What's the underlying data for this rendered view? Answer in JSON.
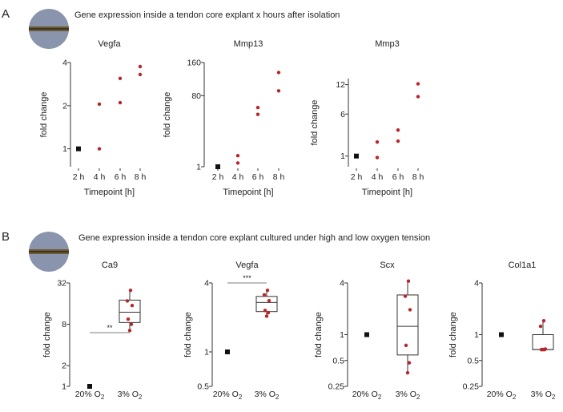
{
  "panels": [
    {
      "label": "A",
      "caption": "Gene expression inside a tendon core explant x hours after isolation"
    },
    {
      "label": "B",
      "caption": "Gene expression inside a tendon core explant cultured under high and low oxygen tension"
    }
  ],
  "colors": {
    "treated": "#b8262b",
    "control": "#111111",
    "text": "#222222",
    "tendon_bg": "#8a95ad",
    "tendon_band": "#6b5c38"
  },
  "chart_data": [
    {
      "type": "scatter",
      "panel": "A",
      "title": "Vegfa",
      "xlabel": "Timepoint [h]",
      "ylabel": "fold change",
      "categories": [
        "2 h",
        "4 h",
        "6 h",
        "8 h"
      ],
      "yscale": "log",
      "ylim": [
        0.75,
        4
      ],
      "yticks": [
        1,
        2,
        4
      ],
      "control": [
        {
          "x": "2 h",
          "y": 1
        }
      ],
      "points": [
        {
          "x": "4 h",
          "y": 1.0
        },
        {
          "x": "4 h",
          "y": 2.05
        },
        {
          "x": "6 h",
          "y": 2.1
        },
        {
          "x": "6 h",
          "y": 3.1
        },
        {
          "x": "8 h",
          "y": 3.3
        },
        {
          "x": "8 h",
          "y": 3.75
        }
      ]
    },
    {
      "type": "scatter",
      "panel": "A",
      "title": "Mmp13",
      "xlabel": "Timepoint [h]",
      "ylabel": "fold change",
      "categories": [
        "2 h",
        "4 h",
        "6 h",
        "8 h"
      ],
      "yscale": "sqrt",
      "ylim": [
        1,
        160
      ],
      "yticks": [
        1,
        80,
        160
      ],
      "control": [
        {
          "x": "2 h",
          "y": 1
        }
      ],
      "points": [
        {
          "x": "4 h",
          "y": 2
        },
        {
          "x": "4 h",
          "y": 5
        },
        {
          "x": "6 h",
          "y": 47
        },
        {
          "x": "6 h",
          "y": 58
        },
        {
          "x": "8 h",
          "y": 90
        },
        {
          "x": "8 h",
          "y": 133
        }
      ]
    },
    {
      "type": "scatter",
      "panel": "A",
      "title": "Mmp3",
      "xlabel": "Timepoint [h]",
      "ylabel": "fold change",
      "categories": [
        "2 h",
        "4 h",
        "6 h",
        "8 h"
      ],
      "yscale": "sqrt",
      "ylim": [
        0.4,
        13.5
      ],
      "yticks": [
        1,
        6,
        12
      ],
      "control": [
        {
          "x": "2 h",
          "y": 1
        }
      ],
      "points": [
        {
          "x": "4 h",
          "y": 0.9
        },
        {
          "x": "4 h",
          "y": 2.2
        },
        {
          "x": "6 h",
          "y": 2.3
        },
        {
          "x": "6 h",
          "y": 3.6
        },
        {
          "x": "8 h",
          "y": 9.3
        },
        {
          "x": "8 h",
          "y": 12.2
        }
      ]
    },
    {
      "type": "box",
      "panel": "B",
      "title": "Ca9",
      "ylabel": "fold change",
      "categories": [
        "20% O2",
        "3% O2"
      ],
      "yscale": "log",
      "ylim": [
        1,
        32
      ],
      "yticks": [
        1,
        2,
        8,
        32
      ],
      "control": {
        "x": "20% O2",
        "y": 1
      },
      "box": {
        "x": "3% O2",
        "whisker_low": 6.5,
        "q1": 8.5,
        "median": 12,
        "q3": 18,
        "whisker_high": 25
      },
      "points": [
        6.5,
        8,
        9.5,
        15,
        17.5,
        25
      ],
      "significance": "**"
    },
    {
      "type": "box",
      "panel": "B",
      "title": "Vegfa",
      "ylabel": "fold change",
      "categories": [
        "20% O2",
        "3% O2"
      ],
      "yscale": "log",
      "ylim": [
        0.5,
        4
      ],
      "yticks": [
        0.5,
        1,
        4
      ],
      "control": {
        "x": "20% O2",
        "y": 1
      },
      "box": {
        "x": "3% O2",
        "whisker_low": 2.05,
        "q1": 2.25,
        "median": 2.7,
        "q3": 3.05,
        "whisker_high": 3.45
      },
      "points": [
        2.05,
        2.2,
        2.3,
        2.8,
        3.15,
        3.45
      ],
      "significance": "***"
    },
    {
      "type": "box",
      "panel": "B",
      "title": "Scx",
      "ylabel": "fold change",
      "categories": [
        "20% O2",
        "3% O2"
      ],
      "yscale": "log",
      "ylim": [
        0.25,
        4
      ],
      "yticks": [
        0.25,
        0.5,
        1,
        4
      ],
      "control": {
        "x": "20% O2",
        "y": 1
      },
      "box": {
        "x": "3% O2",
        "whisker_low": 0.35,
        "q1": 0.58,
        "median": 1.25,
        "q3": 2.9,
        "whisker_high": 4.2
      },
      "points": [
        0.36,
        0.47,
        0.75,
        1.95,
        2.8,
        4.2
      ]
    },
    {
      "type": "box",
      "panel": "B",
      "title": "Col1a1",
      "ylabel": "fold change",
      "categories": [
        "20% O2",
        "3% O2"
      ],
      "yscale": "log",
      "ylim": [
        0.25,
        4
      ],
      "yticks": [
        0.25,
        0.5,
        1,
        4
      ],
      "control": {
        "x": "20% O2",
        "y": 1
      },
      "box": {
        "x": "3% O2",
        "whisker_low": 0.67,
        "q1": 0.67,
        "median": 0.67,
        "q3": 1.0,
        "whisker_high": 1.45
      },
      "points": [
        0.67,
        0.67,
        0.67,
        0.68,
        1.25,
        1.45
      ]
    }
  ]
}
